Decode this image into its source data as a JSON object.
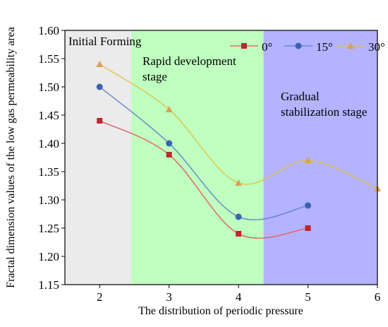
{
  "chart_data": {
    "type": "line",
    "xlabel": "The distribution of periodic pressure",
    "ylabel": "Fractal dimension values of the low gas permeability area",
    "xlim": [
      1.5,
      6
    ],
    "ylim": [
      1.15,
      1.6
    ],
    "xticks": [
      "2",
      "3",
      "4",
      "5",
      "6"
    ],
    "xtick_values": [
      2,
      3,
      4,
      5,
      6
    ],
    "yticks": [
      "1.15",
      "1.20",
      "1.25",
      "1.30",
      "1.35",
      "1.40",
      "1.45",
      "1.50",
      "1.55",
      "1.60"
    ],
    "ytick_values": [
      1.15,
      1.2,
      1.25,
      1.3,
      1.35,
      1.4,
      1.45,
      1.5,
      1.55,
      1.6
    ],
    "grid": false,
    "legend_position": "top-right",
    "stages": [
      {
        "label_lines": [
          "Initial Forming"
        ],
        "x_start": 1.5,
        "x_end": 2.46,
        "color": "#ebebeb"
      },
      {
        "label_lines": [
          "Rapid development",
          "stage"
        ],
        "x_start": 2.46,
        "x_end": 4.36,
        "color": "#bfffbf"
      },
      {
        "label_lines": [
          "Gradual",
          "stabilization stage"
        ],
        "x_start": 4.36,
        "x_end": 6,
        "color": "#b3b3ff"
      }
    ],
    "series": [
      {
        "name": "0°",
        "marker": "square",
        "marker_color": "#c0262d",
        "line_color": "#e8555a",
        "x": [
          2,
          3,
          4,
          5
        ],
        "values": [
          1.44,
          1.38,
          1.24,
          1.25
        ]
      },
      {
        "name": "15°",
        "marker": "circle",
        "marker_color": "#3a62b0",
        "line_color": "#5a80c8",
        "x": [
          2,
          3,
          4,
          5
        ],
        "values": [
          1.5,
          1.4,
          1.27,
          1.29
        ]
      },
      {
        "name": "30°",
        "marker": "triangle",
        "marker_color": "#d9a050",
        "line_color": "#e0c040",
        "x": [
          2,
          3,
          4,
          5,
          6
        ],
        "values": [
          1.54,
          1.46,
          1.33,
          1.37,
          1.32
        ]
      }
    ]
  }
}
